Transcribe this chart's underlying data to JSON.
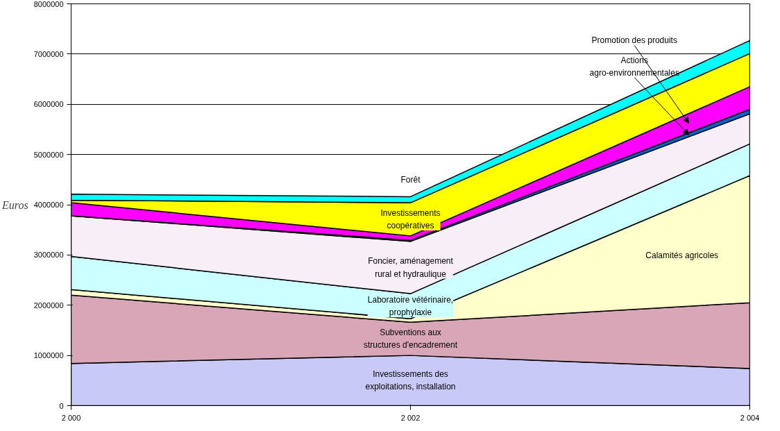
{
  "chart_data": {
    "type": "area",
    "stacked": true,
    "ylabel": "Euros",
    "x": [
      2000,
      2002,
      2004
    ],
    "series": [
      {
        "name": "Investissements des exploitations, installation",
        "color": "#c9c9f7",
        "values": [
          840000,
          1000000,
          740000
        ]
      },
      {
        "name": "Subventions aux structures d'encadrement",
        "color": "#d9a6b8",
        "values": [
          1360000,
          660000,
          1310000
        ]
      },
      {
        "name": "Calamités agricoles",
        "color": "#ffffcc",
        "values": [
          110000,
          70000,
          2530000
        ]
      },
      {
        "name": "Laboratoire vétérinaire, prophylaxie",
        "color": "#ccffff",
        "values": [
          660000,
          500000,
          630000
        ]
      },
      {
        "name": "Foncier, aménagement rural et hydraulique",
        "color": "#f7eef7",
        "values": [
          810000,
          1040000,
          600000
        ]
      },
      {
        "name": "Actions agro-environnementales",
        "color": "#0066cc",
        "values": [
          0,
          20000,
          90000
        ]
      },
      {
        "name": "Promotion des produits",
        "color": "#ff00ff",
        "values": [
          260000,
          90000,
          450000
        ]
      },
      {
        "name": "Investissements coopératives",
        "color": "#ffff00",
        "values": [
          50000,
          660000,
          660000
        ]
      },
      {
        "name": "Forêt",
        "color": "#00ffff",
        "values": [
          120000,
          120000,
          260000
        ]
      }
    ],
    "xlim": [
      2000,
      2004
    ],
    "xticks": [
      {
        "value": 2000,
        "label": "2 000"
      },
      {
        "value": 2002,
        "label": "2 002"
      },
      {
        "value": 2004,
        "label": "2 004"
      }
    ],
    "ylim": [
      0,
      8000000
    ],
    "yticks": [
      0,
      1000000,
      2000000,
      3000000,
      4000000,
      5000000,
      6000000,
      7000000,
      8000000
    ],
    "grid": "y"
  }
}
